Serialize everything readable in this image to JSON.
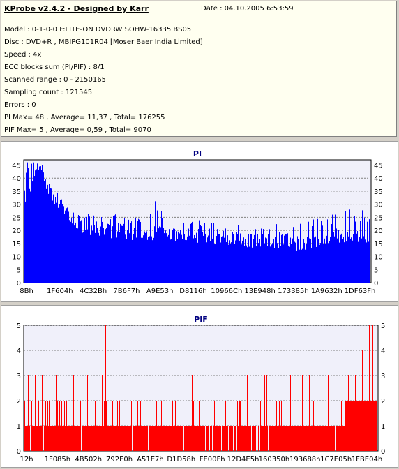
{
  "header": {
    "title": "KProbe v2.4.2 - Designed by Karr",
    "date": "Date : 04.10.2005 6:53:59"
  },
  "info_lines": [
    "Model : 0-1-0-0 F:LITE-ON DVDRW SOHW-16335 BS05",
    "Disc : DVD+R , MBIPG101R04 [Moser Baer India Limited]",
    "Speed : 4x",
    "ECC blocks sum (PI/PIF) : 8/1",
    "Scanned range : 0 - 2150165",
    "Sampling count : 121545",
    "Errors : 0",
    "PI Max= 48 , Average= 11,37 , Total= 176255",
    "PIF Max= 5 , Average= 0,59 , Total= 9070"
  ],
  "colors": {
    "pi_bar": "#0000ff",
    "pif_bar": "#ff0000",
    "plot_bg": "#f0f0fa",
    "title": "#000080"
  },
  "chart_data": [
    {
      "type": "bar",
      "title": "PI",
      "ylim": [
        0,
        47
      ],
      "yticks": [
        0,
        5,
        10,
        15,
        20,
        25,
        30,
        35,
        40,
        45
      ],
      "xtick_labels": [
        "8Bh",
        "1F604h",
        "4C32Bh",
        "7B6F7h",
        "A9E53h",
        "D8116h",
        "10966Ch",
        "13E948h",
        "173385h",
        "1A9632h",
        "1DF63Fh"
      ],
      "grid": true,
      "values_sampled": [
        33,
        38,
        44,
        42,
        36,
        33,
        30,
        26,
        22,
        21,
        21,
        20,
        20,
        21,
        20,
        20,
        20,
        19,
        19,
        19,
        18,
        19,
        19,
        18,
        18,
        18,
        19,
        19,
        18,
        18,
        18,
        18,
        17,
        17,
        17,
        17,
        16,
        16,
        16,
        16,
        15,
        15,
        15,
        16,
        16,
        15,
        15,
        16,
        16,
        17,
        17,
        18,
        18,
        17,
        16,
        17,
        18,
        18
      ],
      "peaks_sampled": [
        45,
        48,
        44,
        40,
        38,
        33,
        31,
        29,
        27,
        27,
        27,
        28,
        26,
        26,
        27,
        28,
        26,
        26,
        26,
        25,
        28,
        27,
        36,
        26,
        25,
        25,
        26,
        24,
        24,
        25,
        23,
        23,
        23,
        24,
        23,
        22,
        22,
        22,
        23,
        22,
        21,
        22,
        23,
        22,
        22,
        23,
        24,
        24,
        25,
        26,
        26,
        27,
        28,
        29,
        28,
        27,
        28,
        29
      ]
    },
    {
      "type": "bar",
      "title": "PIF",
      "ylim": [
        0,
        5
      ],
      "yticks": [
        0,
        1,
        2,
        3,
        4,
        5
      ],
      "xtick_labels": [
        "12h",
        "1F085h",
        "4B502h",
        "792E0h",
        "A51E7h",
        "D1D58h",
        "FE00Fh",
        "12D4E5h",
        "160350h",
        "193688h",
        "1C7E05h",
        "1FBE04h"
      ],
      "grid": true,
      "baseline_level": 1,
      "spikes": [
        {
          "x": 0.0,
          "v": 2
        },
        {
          "x": 0.01,
          "v": 3
        },
        {
          "x": 0.02,
          "v": 2
        },
        {
          "x": 0.03,
          "v": 3
        },
        {
          "x": 0.04,
          "v": 2
        },
        {
          "x": 0.05,
          "v": 3
        },
        {
          "x": 0.06,
          "v": 2
        },
        {
          "x": 0.07,
          "v": 2
        },
        {
          "x": 0.09,
          "v": 3
        },
        {
          "x": 0.1,
          "v": 2
        },
        {
          "x": 0.12,
          "v": 2
        },
        {
          "x": 0.14,
          "v": 3
        },
        {
          "x": 0.16,
          "v": 2
        },
        {
          "x": 0.18,
          "v": 3
        },
        {
          "x": 0.2,
          "v": 2
        },
        {
          "x": 0.22,
          "v": 3
        },
        {
          "x": 0.23,
          "v": 5
        },
        {
          "x": 0.25,
          "v": 2
        },
        {
          "x": 0.27,
          "v": 2
        },
        {
          "x": 0.3,
          "v": 2
        },
        {
          "x": 0.33,
          "v": 2
        },
        {
          "x": 0.36,
          "v": 2
        },
        {
          "x": 0.39,
          "v": 2
        },
        {
          "x": 0.42,
          "v": 2
        },
        {
          "x": 0.45,
          "v": 3
        },
        {
          "x": 0.48,
          "v": 2
        },
        {
          "x": 0.51,
          "v": 2
        },
        {
          "x": 0.54,
          "v": 2
        },
        {
          "x": 0.57,
          "v": 2
        },
        {
          "x": 0.61,
          "v": 2
        },
        {
          "x": 0.64,
          "v": 2
        },
        {
          "x": 0.67,
          "v": 2
        },
        {
          "x": 0.7,
          "v": 2
        },
        {
          "x": 0.73,
          "v": 2
        },
        {
          "x": 0.76,
          "v": 2
        },
        {
          "x": 0.79,
          "v": 3
        },
        {
          "x": 0.82,
          "v": 2
        },
        {
          "x": 0.85,
          "v": 2
        },
        {
          "x": 0.87,
          "v": 3
        },
        {
          "x": 0.89,
          "v": 3
        },
        {
          "x": 0.9,
          "v": 2
        },
        {
          "x": 0.91,
          "v": 2
        },
        {
          "x": 0.92,
          "v": 3
        },
        {
          "x": 0.93,
          "v": 3
        },
        {
          "x": 0.94,
          "v": 3
        },
        {
          "x": 0.95,
          "v": 4
        },
        {
          "x": 0.96,
          "v": 4
        },
        {
          "x": 0.97,
          "v": 4
        },
        {
          "x": 0.98,
          "v": 5
        },
        {
          "x": 0.99,
          "v": 5
        },
        {
          "x": 1.0,
          "v": 5
        }
      ],
      "plateau": {
        "from": 0.91,
        "to": 1.0,
        "level": 2
      }
    }
  ]
}
